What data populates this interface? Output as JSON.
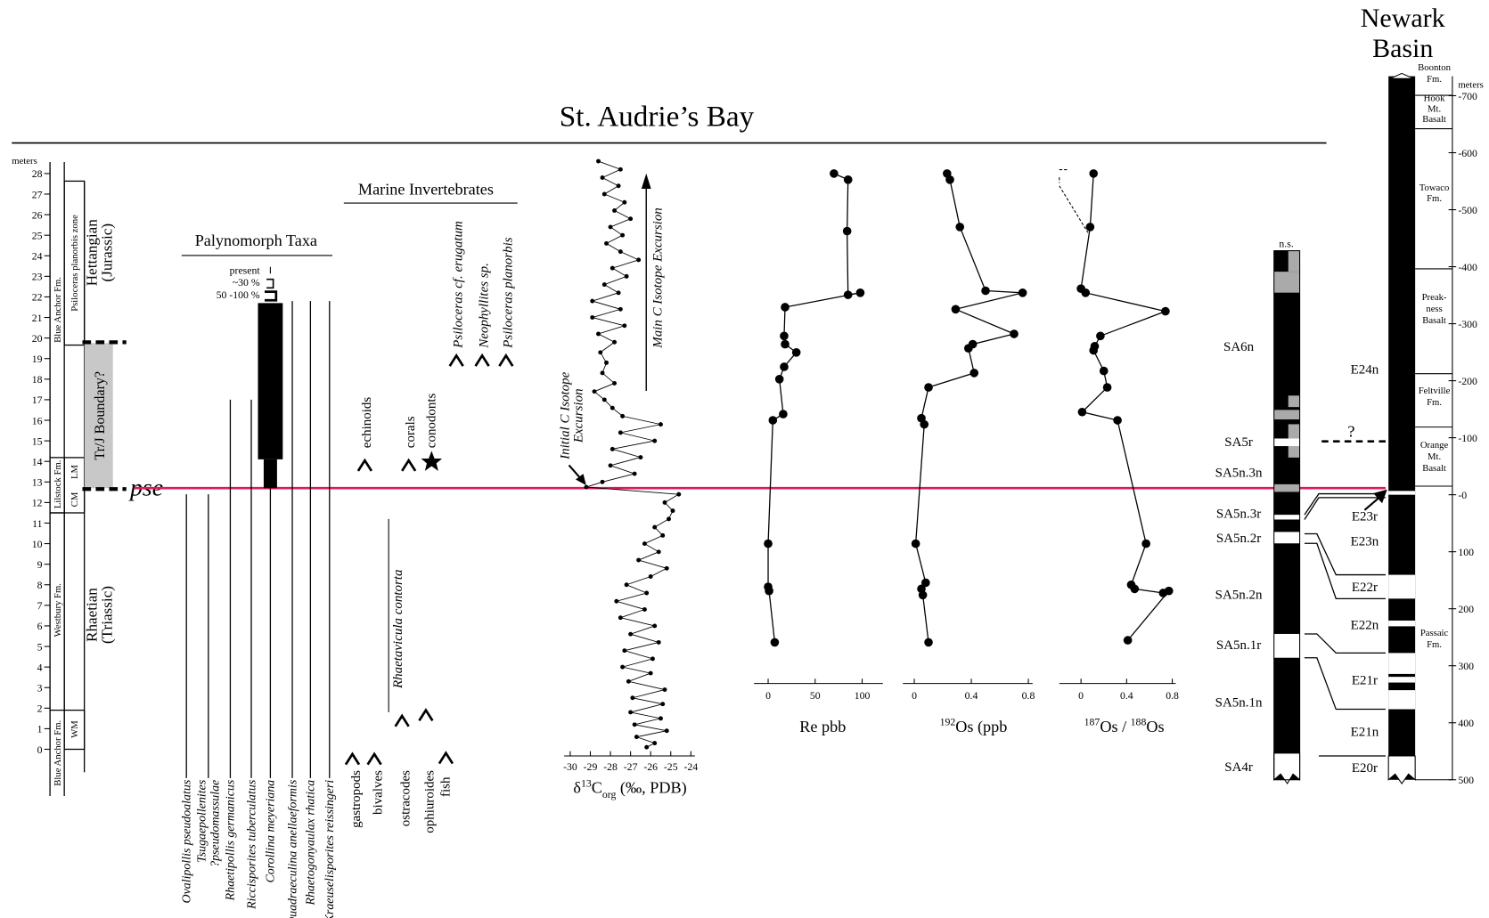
{
  "title": "St. Audrie’s Bay",
  "pse": "pse",
  "section": {
    "axis_label": "meters",
    "ticks": [
      0,
      1,
      2,
      3,
      4,
      5,
      6,
      7,
      8,
      9,
      10,
      11,
      12,
      13,
      14,
      15,
      16,
      17,
      18,
      19,
      20,
      21,
      22,
      23,
      24,
      25,
      26,
      27,
      28
    ],
    "lithostratigraphy": [
      "Blue Anchor Fm.",
      "Lilstock Fm.",
      "Westbury Fm.",
      "Blue Anchor Fm."
    ],
    "members": [
      "LM",
      "CM",
      "WM"
    ],
    "zone": "Psiloceras planorbis zone",
    "stages": [
      [
        "Hettangian",
        "(Jurassic)"
      ],
      [
        "Rhaetian",
        "(Triassic)"
      ]
    ],
    "boundary": "Tr/J Boundary?"
  },
  "palynomorphs": {
    "title": "Palynomorph Taxa",
    "legend": [
      "present",
      "~30 %",
      "50 -100 %"
    ],
    "taxa": [
      {
        "name": [
          "Ovalipollis pseudoalatus"
        ],
        "range": [
          -1.4,
          12.4
        ]
      },
      {
        "name": [
          "Tsugaepollenites",
          "?pseudomassulae"
        ],
        "range": [
          -1.4,
          12.4
        ]
      },
      {
        "name": [
          "Rhaetipollis germanicus"
        ],
        "range": [
          -1.4,
          17.0
        ]
      },
      {
        "name": [
          "Riccisporites tuberculatus"
        ],
        "range": [
          -1.4,
          17.0
        ]
      },
      {
        "name": [
          "Corollina meyeriana"
        ],
        "range": [
          -1.4,
          12.7
        ],
        "bars": [
          [
            12.7,
            14.1
          ],
          [
            14.1,
            21.7
          ]
        ]
      },
      {
        "name": [
          "Quadraeculina anellaeformis"
        ],
        "range": [
          -1.4,
          21.8
        ]
      },
      {
        "name": [
          "Rhaetogonyaulax rhatica"
        ],
        "range": [
          -1.4,
          21.8
        ]
      },
      {
        "name": [
          "Kraeuselisporites reissingeri"
        ],
        "range": [
          -1.4,
          21.8
        ]
      }
    ]
  },
  "marine": {
    "title": "Marine Invertebrates",
    "lower": [
      "gastropods",
      "bivalves",
      "ostracodes",
      "ophiuroides",
      "fish"
    ],
    "middle": [
      "echinoids",
      "corals",
      "conodonts"
    ],
    "ammonites": [
      "Psiloceras cf. erugatum",
      "Neophyllites sp.",
      "Psiloceras planorbis"
    ],
    "bivalve_range": {
      "name": "Rhaetavicula contorta",
      "range": [
        1.8,
        11.2
      ]
    }
  },
  "carbon": {
    "axis_label": {
      "delta": "δ",
      "sup": "13",
      "main": "C",
      "sub": "org",
      "unit": " (‰, PDB)"
    },
    "annotations": {
      "main": "Main C Isotope Excursion",
      "initial": [
        "Initial C Isotope",
        "Excursion"
      ]
    },
    "xlim": [
      -30.3,
      -23.8
    ],
    "xticks": [
      -30,
      -29,
      -28,
      -27,
      -26,
      -25,
      -24
    ],
    "meters": [
      0.1,
      0.3,
      0.6,
      0.9,
      1.2,
      1.5,
      1.8,
      2.2,
      2.5,
      2.9,
      3.3,
      3.7,
      4.0,
      4.4,
      4.8,
      5.2,
      5.6,
      6.0,
      6.4,
      6.8,
      7.2,
      7.6,
      8.0,
      8.4,
      8.8,
      9.2,
      9.6,
      10.0,
      10.4,
      10.8,
      11.2,
      11.6,
      12.0,
      12.4,
      12.75,
      13.0,
      13.4,
      13.8,
      14.2,
      14.6,
      15.0,
      15.4,
      15.8,
      16.2,
      16.6,
      17.0,
      17.4,
      17.8,
      18.3,
      18.8,
      19.3,
      19.8,
      20.2,
      20.6,
      21.0,
      21.4,
      21.8,
      22.2,
      22.6,
      23.0,
      23.4,
      23.8,
      24.2,
      24.6,
      25.0,
      25.4,
      25.8,
      26.2,
      26.6,
      27.0,
      27.4,
      27.8,
      28.2,
      28.6
    ],
    "values": [
      -26.2,
      -25.8,
      -26.7,
      -25.2,
      -26.8,
      -25.5,
      -27.0,
      -25.4,
      -26.9,
      -25.3,
      -27.1,
      -26.0,
      -27.4,
      -25.9,
      -27.3,
      -25.6,
      -27.0,
      -25.8,
      -27.5,
      -26.3,
      -27.7,
      -26.2,
      -27.2,
      -26.0,
      -25.2,
      -26.6,
      -25.6,
      -26.3,
      -25.4,
      -25.8,
      -25.1,
      -24.9,
      -25.3,
      -24.6,
      -29.2,
      -28.4,
      -26.8,
      -28.0,
      -26.5,
      -27.9,
      -25.8,
      -27.5,
      -25.5,
      -27.4,
      -27.9,
      -28.3,
      -28.8,
      -27.8,
      -28.4,
      -28.2,
      -28.5,
      -27.8,
      -28.6,
      -27.3,
      -28.9,
      -27.5,
      -28.9,
      -27.6,
      -28.3,
      -27.2,
      -27.9,
      -26.6,
      -27.5,
      -28.2,
      -27.4,
      -28.0,
      -27.0,
      -27.8,
      -27.3,
      -28.3,
      -27.6,
      -28.4,
      -27.5,
      -28.6
    ]
  },
  "rhenium": {
    "axis_label": "Re pbb",
    "xlim": [
      -15,
      122
    ],
    "xticks": [
      0,
      50,
      100
    ],
    "meters": [
      28.0,
      27.7,
      25.2,
      22.1,
      22.2,
      21.5,
      20.1,
      19.7,
      19.3,
      18.6,
      18.0,
      16.3,
      16.0,
      10.0,
      7.9,
      7.7,
      5.2
    ],
    "values": [
      70,
      85,
      84,
      85,
      98,
      18,
      17,
      18,
      30,
      17,
      12,
      16,
      5,
      0,
      0,
      1,
      7
    ]
  },
  "os192": {
    "axis_label": {
      "sup": "192",
      "main": "Os (ppb"
    },
    "xlim": [
      -0.08,
      0.83
    ],
    "xticks": [
      0,
      0.4,
      0.8
    ],
    "meters": [
      28.0,
      27.7,
      25.4,
      22.3,
      22.2,
      21.4,
      20.2,
      19.7,
      19.5,
      18.3,
      17.6,
      16.1,
      15.8,
      10.0,
      8.1,
      7.8,
      7.5,
      5.2
    ],
    "values": [
      0.23,
      0.25,
      0.32,
      0.5,
      0.76,
      0.29,
      0.7,
      0.41,
      0.38,
      0.42,
      0.1,
      0.05,
      0.07,
      0.01,
      0.08,
      0.05,
      0.06,
      0.1
    ]
  },
  "os_ratio": {
    "axis_label": {
      "sup1": "187",
      "main1": "Os / ",
      "sup2": "188",
      "main2": "Os"
    },
    "xlim": [
      -0.19,
      0.83
    ],
    "xticks": [
      0,
      0.4,
      0.8
    ],
    "meters": [
      28.0,
      25.4,
      22.4,
      22.2,
      21.3,
      20.1,
      19.6,
      19.4,
      18.4,
      17.6,
      16.4,
      16.0,
      10.0,
      8.0,
      7.8,
      7.6,
      7.7,
      5.3
    ],
    "values": [
      0.11,
      0.08,
      0.0,
      0.04,
      0.74,
      0.17,
      0.12,
      0.11,
      0.2,
      0.23,
      0.01,
      0.32,
      0.57,
      0.44,
      0.47,
      0.72,
      0.77,
      0.41
    ]
  },
  "st_audrie_magnetozones": {
    "note": "n.s.",
    "zones": [
      "SA6n",
      "SA5r",
      "SA5n.3n",
      "SA5n.3r",
      "SA5n.2r",
      "SA5n.2n",
      "SA5n.1r",
      "SA5n.1n",
      "SA4r"
    ]
  },
  "newark": {
    "title": [
      "Newark",
      "Basin"
    ],
    "axis_label": "meters",
    "ticks": [
      -700,
      -600,
      -500,
      -400,
      -300,
      -200,
      -100,
      {
        "value": 0,
        "label": "-0"
      },
      100,
      200,
      300,
      400,
      500
    ],
    "formations": [
      [
        "Boonton",
        "Fm."
      ],
      [
        "Hook",
        "Mt.",
        "Basalt"
      ],
      [
        "Towaco",
        "Fm."
      ],
      [
        "Preak-",
        "ness",
        "Basalt"
      ],
      [
        "Feltville",
        "Fm."
      ],
      [
        "Orange",
        "Mt.",
        "Basalt"
      ],
      [
        "Passaic",
        "Fm."
      ]
    ],
    "magnetozones": [
      "E24n",
      "E23r",
      "E23n",
      "E22r",
      "E22n",
      "E21r",
      "E21n",
      "E20r"
    ],
    "correlation_query": "?"
  }
}
